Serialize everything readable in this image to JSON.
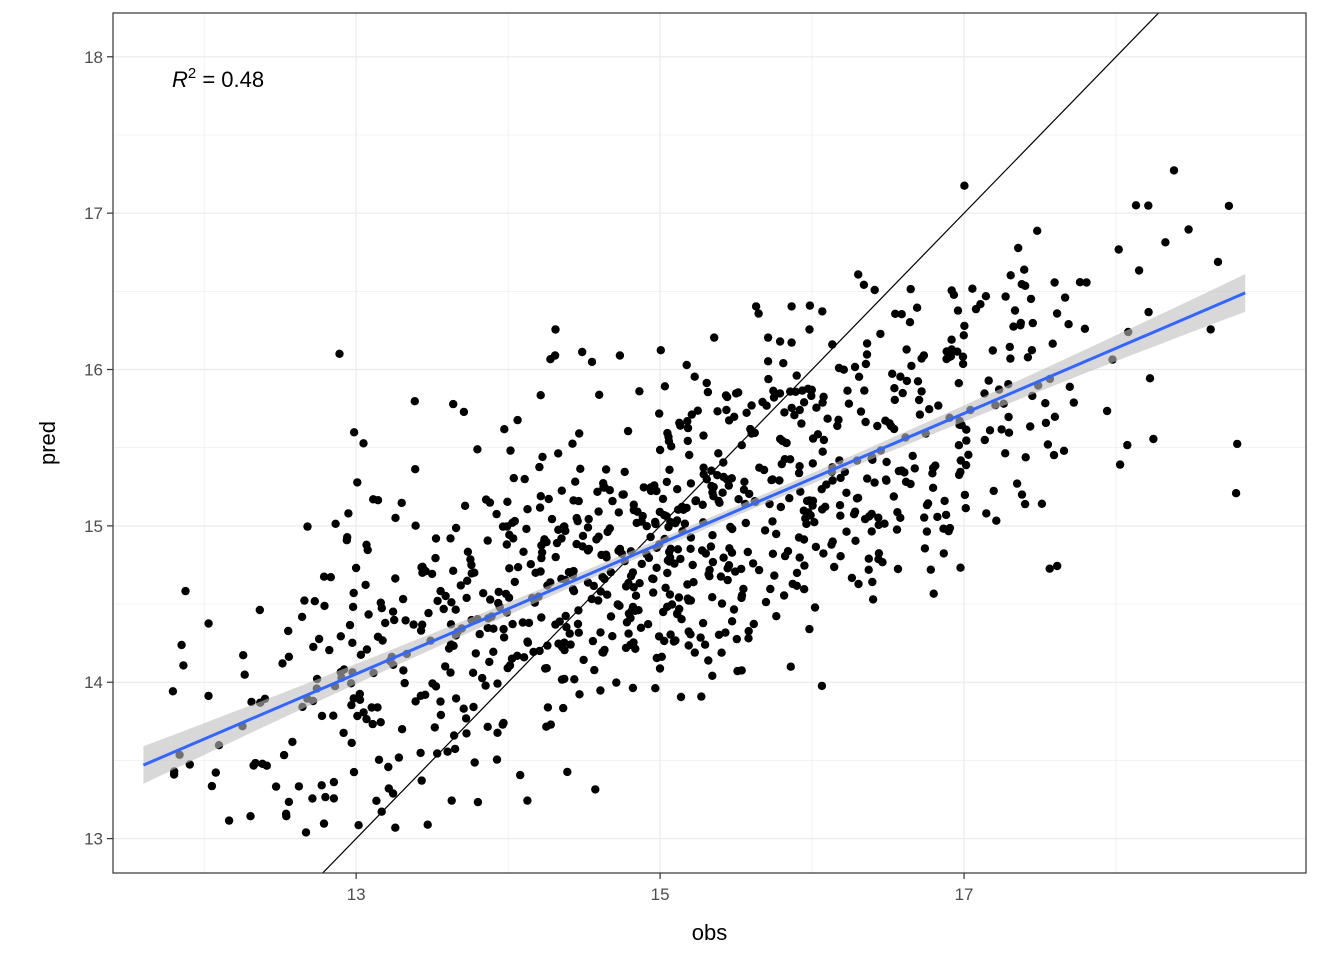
{
  "chart_data": {
    "type": "scatter",
    "xlabel": "obs",
    "ylabel": "pred",
    "xlim": [
      11.4,
      19.25
    ],
    "ylim": [
      12.78,
      18.28
    ],
    "x_ticks": [
      13,
      15,
      17
    ],
    "y_ticks": [
      13,
      14,
      15,
      16,
      17,
      18
    ],
    "grid": true,
    "annotation": {
      "r2_symbol": "R",
      "r2_power": "2",
      "r2_value": " = 0.48"
    },
    "identity_line": {
      "slope": 1,
      "intercept": 0
    },
    "fit_line": {
      "x_range": [
        11.6,
        18.85
      ],
      "y_start": 13.47,
      "y_end": 16.49,
      "ci_halfwidth_start": 0.12,
      "ci_halfwidth_mid": 0.03,
      "ci_halfwidth_end": 0.12,
      "color": "#3366FF",
      "band_color": "#BEBEBE"
    },
    "point_color": "#000000",
    "n_points": 950,
    "fit_model": {
      "slope": 0.415,
      "intercept": 8.7,
      "residual_sd": 0.55,
      "x_mean": 15.0,
      "x_sd": 1.5
    }
  }
}
